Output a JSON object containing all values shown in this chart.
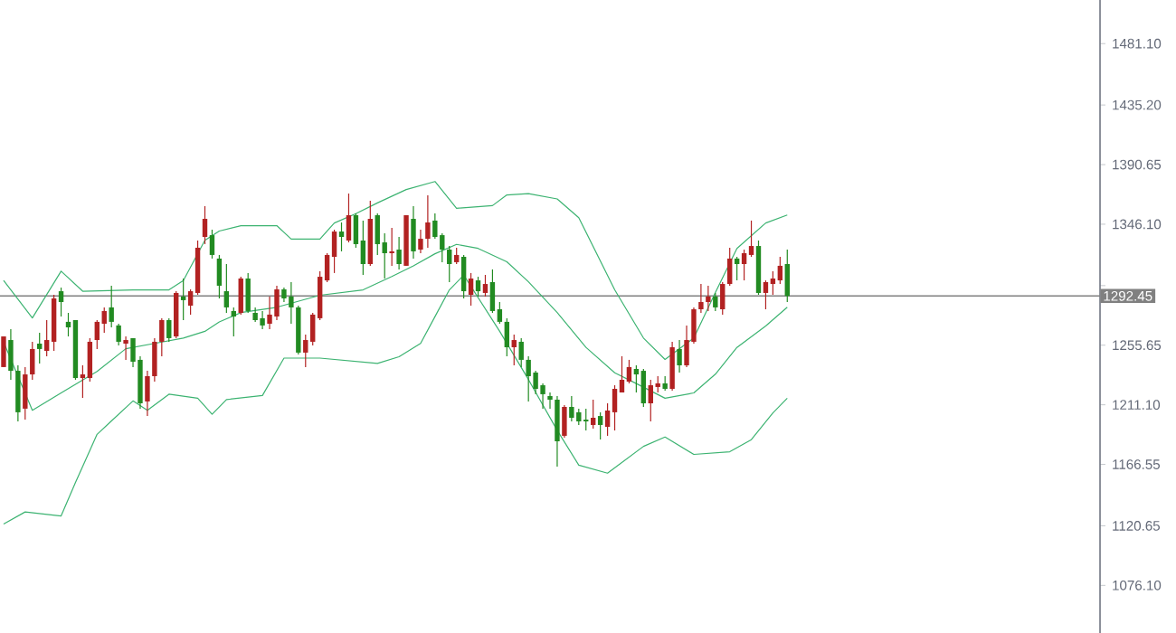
{
  "chart_data": {
    "type": "candlestick",
    "categories": [
      null,
      null,
      null,
      null,
      null,
      null,
      null,
      null,
      null,
      null,
      null,
      null,
      null,
      null,
      null,
      null,
      null,
      null,
      null,
      null,
      null,
      null,
      null,
      null,
      null,
      null,
      null,
      null,
      null,
      null,
      null,
      null,
      null,
      null,
      null,
      null,
      null,
      null,
      null,
      null,
      null,
      null,
      null,
      null,
      null,
      null,
      null,
      null,
      null,
      null,
      null,
      null,
      null,
      null,
      null,
      null,
      null,
      null,
      null,
      null,
      null,
      null,
      null,
      null,
      null,
      null,
      null,
      null,
      null,
      null,
      null,
      null,
      null,
      null,
      null,
      null,
      null,
      null,
      null,
      null,
      null,
      null,
      null,
      null,
      null,
      null,
      null,
      null,
      null,
      null,
      null,
      null,
      null,
      null,
      null,
      null,
      null,
      null,
      null,
      null,
      null,
      null,
      null,
      null,
      null,
      null,
      null,
      null,
      null,
      null,
      null,
      null,
      null,
      null,
      null,
      null,
      null,
      null,
      null,
      null,
      null,
      null,
      null,
      null,
      null,
      null,
      null,
      null,
      null,
      null,
      null,
      null,
      null,
      null,
      null,
      null,
      null,
      null,
      null,
      null,
      null,
      null,
      null,
      null,
      null,
      null,
      null,
      null,
      null,
      null,
      null,
      null,
      null
    ],
    "ohlc": [
      [
        1239.3,
        1262.2,
        1239.3,
        1262.2
      ],
      [
        1259.5,
        1267.6,
        1229.8,
        1236.5
      ],
      [
        1236.5,
        1240.6,
        1198.7,
        1205.5
      ],
      [
        1208.2,
        1239.3,
        1200.0,
        1233.8
      ],
      [
        1233.8,
        1258.2,
        1229.8,
        1252.8
      ],
      [
        1256.8,
        1264.9,
        1242.0,
        1252.8
      ],
      [
        1251.4,
        1274.4,
        1247.4,
        1259.5
      ],
      [
        1258.2,
        1293.3,
        1251.4,
        1290.6
      ],
      [
        1296.0,
        1298.7,
        1277.1,
        1287.9
      ],
      [
        1273.1,
        1279.8,
        1262.2,
        1269.0
      ],
      [
        1274.4,
        1274.4,
        1229.8,
        1231.1
      ],
      [
        1231.1,
        1240.6,
        1216.3,
        1233.8
      ],
      [
        1231.1,
        1260.9,
        1228.4,
        1258.2
      ],
      [
        1259.5,
        1274.4,
        1252.8,
        1273.1
      ],
      [
        1271.7,
        1283.9,
        1264.9,
        1281.2
      ],
      [
        1283.9,
        1300.1,
        1269.0,
        1273.1
      ],
      [
        1270.4,
        1271.7,
        1255.5,
        1258.2
      ],
      [
        1256.8,
        1262.2,
        1244.7,
        1259.5
      ],
      [
        1260.9,
        1260.9,
        1239.3,
        1243.3
      ],
      [
        1244.7,
        1247.4,
        1208.2,
        1212.2
      ],
      [
        1213.6,
        1236.5,
        1202.7,
        1232.5
      ],
      [
        1232.5,
        1260.9,
        1228.4,
        1258.2
      ],
      [
        1258.2,
        1275.8,
        1247.4,
        1274.4
      ],
      [
        1274.4,
        1275.8,
        1258.2,
        1260.9
      ],
      [
        1262.2,
        1296.0,
        1260.9,
        1294.7
      ],
      [
        1292.0,
        1305.5,
        1274.4,
        1289.3
      ],
      [
        1285.2,
        1297.4,
        1278.5,
        1296.0
      ],
      [
        1294.7,
        1333.9,
        1293.3,
        1328.5
      ],
      [
        1336.6,
        1359.6,
        1331.2,
        1350.1
      ],
      [
        1337.9,
        1342.0,
        1320.4,
        1323.1
      ],
      [
        1320.4,
        1323.1,
        1290.6,
        1300.1
      ],
      [
        1296.0,
        1316.3,
        1279.8,
        1283.9
      ],
      [
        1281.2,
        1283.9,
        1262.2,
        1277.1
      ],
      [
        1279.8,
        1306.8,
        1278.5,
        1305.5
      ],
      [
        1305.5,
        1309.6,
        1279.8,
        1281.2
      ],
      [
        1279.8,
        1283.9,
        1273.1,
        1274.4
      ],
      [
        1275.8,
        1281.2,
        1267.6,
        1270.4
      ],
      [
        1271.7,
        1292.0,
        1267.6,
        1278.5
      ],
      [
        1277.1,
        1300.1,
        1274.4,
        1297.4
      ],
      [
        1297.4,
        1298.7,
        1287.9,
        1290.6
      ],
      [
        1292.0,
        1302.8,
        1271.7,
        1283.9
      ],
      [
        1283.9,
        1285.2,
        1248.7,
        1250.1
      ],
      [
        1250.1,
        1263.6,
        1239.3,
        1259.5
      ],
      [
        1258.2,
        1279.8,
        1255.5,
        1278.5
      ],
      [
        1275.8,
        1310.9,
        1274.4,
        1306.8
      ],
      [
        1304.1,
        1324.4,
        1302.8,
        1323.1
      ],
      [
        1321.7,
        1342.0,
        1309.6,
        1340.6
      ],
      [
        1340.6,
        1347.4,
        1325.8,
        1336.6
      ],
      [
        1333.9,
        1369.0,
        1332.5,
        1352.8
      ],
      [
        1352.8,
        1354.2,
        1328.5,
        1331.2
      ],
      [
        1333.9,
        1348.8,
        1308.2,
        1316.3
      ],
      [
        1316.3,
        1363.6,
        1315.0,
        1350.1
      ],
      [
        1352.8,
        1354.2,
        1323.1,
        1331.2
      ],
      [
        1332.5,
        1339.3,
        1305.5,
        1324.4
      ],
      [
        1324.4,
        1343.3,
        1315.0,
        1325.8
      ],
      [
        1327.1,
        1336.6,
        1312.3,
        1316.3
      ],
      [
        1315.0,
        1352.8,
        1315.0,
        1352.8
      ],
      [
        1350.1,
        1359.6,
        1320.4,
        1325.8
      ],
      [
        1327.1,
        1342.0,
        1324.4,
        1335.2
      ],
      [
        1335.2,
        1367.7,
        1328.5,
        1347.4
      ],
      [
        1348.8,
        1354.2,
        1335.2,
        1336.6
      ],
      [
        1337.9,
        1339.3,
        1317.7,
        1327.1
      ],
      [
        1327.1,
        1329.8,
        1302.8,
        1316.3
      ],
      [
        1317.7,
        1328.5,
        1316.3,
        1323.1
      ],
      [
        1321.7,
        1323.1,
        1290.6,
        1296.0
      ],
      [
        1293.3,
        1309.6,
        1285.2,
        1305.5
      ],
      [
        1304.1,
        1306.8,
        1292.0,
        1296.0
      ],
      [
        1294.7,
        1308.2,
        1292.0,
        1301.4
      ],
      [
        1302.8,
        1312.3,
        1279.8,
        1281.2
      ],
      [
        1282.5,
        1287.9,
        1271.7,
        1273.1
      ],
      [
        1273.1,
        1275.8,
        1247.4,
        1254.1
      ],
      [
        1254.1,
        1263.6,
        1240.6,
        1259.5
      ],
      [
        1258.2,
        1260.9,
        1239.3,
        1244.7
      ],
      [
        1244.7,
        1247.4,
        1213.6,
        1232.5
      ],
      [
        1235.2,
        1236.5,
        1219.0,
        1223.0
      ],
      [
        1225.7,
        1227.1,
        1208.2,
        1219.0
      ],
      [
        1217.6,
        1220.3,
        1208.2,
        1214.9
      ],
      [
        1214.9,
        1217.6,
        1164.9,
        1183.8
      ],
      [
        1187.9,
        1210.9,
        1186.5,
        1209.5
      ],
      [
        1209.5,
        1217.6,
        1198.7,
        1201.4
      ],
      [
        1205.5,
        1208.2,
        1196.0,
        1198.7
      ],
      [
        1200.0,
        1208.2,
        1191.9,
        1198.7
      ],
      [
        1196.0,
        1214.9,
        1193.3,
        1201.4
      ],
      [
        1202.7,
        1205.5,
        1185.2,
        1196.0
      ],
      [
        1194.6,
        1212.2,
        1187.9,
        1206.8
      ],
      [
        1205.5,
        1225.7,
        1191.9,
        1223.0
      ],
      [
        1220.3,
        1247.4,
        1220.3,
        1229.8
      ],
      [
        1228.4,
        1244.7,
        1227.1,
        1239.3
      ],
      [
        1237.9,
        1240.6,
        1220.3,
        1233.8
      ],
      [
        1236.5,
        1237.9,
        1209.5,
        1212.2
      ],
      [
        1212.2,
        1229.8,
        1198.7,
        1225.7
      ],
      [
        1224.4,
        1232.5,
        1220.3,
        1227.1
      ],
      [
        1227.1,
        1232.5,
        1221.7,
        1223.0
      ],
      [
        1223.0,
        1258.2,
        1221.7,
        1254.1
      ],
      [
        1252.8,
        1259.5,
        1235.2,
        1240.6
      ],
      [
        1240.6,
        1270.4,
        1239.3,
        1259.5
      ],
      [
        1258.2,
        1283.9,
        1256.8,
        1282.5
      ],
      [
        1282.5,
        1301.4,
        1279.8,
        1287.9
      ],
      [
        1287.9,
        1300.1,
        1281.2,
        1292.0
      ],
      [
        1292.0,
        1294.7,
        1281.2,
        1283.9
      ],
      [
        1282.5,
        1302.8,
        1278.5,
        1301.4
      ],
      [
        1301.4,
        1328.5,
        1300.1,
        1320.4
      ],
      [
        1320.4,
        1321.7,
        1304.1,
        1316.3
      ],
      [
        1316.3,
        1327.1,
        1304.1,
        1324.4
      ],
      [
        1323.1,
        1348.8,
        1321.7,
        1329.8
      ],
      [
        1329.8,
        1333.9,
        1293.3,
        1294.7
      ],
      [
        1294.7,
        1304.1,
        1282.5,
        1302.8
      ],
      [
        1301.4,
        1310.9,
        1293.3,
        1305.5
      ],
      [
        1304.1,
        1321.7,
        1301.4,
        1315.0
      ],
      [
        1316.3,
        1327.1,
        1287.9,
        1292.45
      ],
      null,
      null,
      null,
      null,
      null,
      null,
      null,
      null,
      null,
      null,
      null,
      null,
      null,
      null,
      null,
      null,
      null,
      null,
      null,
      null,
      null,
      null,
      null,
      null,
      null,
      null,
      null,
      null,
      null,
      null,
      null,
      null,
      null,
      null,
      null,
      null,
      null,
      null,
      null,
      null,
      null,
      null,
      null
    ],
    "colors": [
      "#b22222",
      "#228b22",
      "#228b22",
      "#b22222",
      "#b22222",
      "#228b22",
      "#b22222",
      "#b22222",
      "#228b22",
      "#228b22",
      "#228b22",
      "#b22222",
      "#b22222",
      "#b22222",
      "#b22222",
      "#228b22",
      "#228b22",
      "#b22222",
      "#228b22",
      "#228b22",
      "#b22222",
      "#b22222",
      "#b22222",
      "#228b22",
      "#b22222",
      "#228b22",
      "#b22222",
      "#b22222",
      "#b22222",
      "#228b22",
      "#228b22",
      "#228b22",
      "#228b22",
      "#b22222",
      "#228b22",
      "#228b22",
      "#228b22",
      "#b22222",
      "#b22222",
      "#228b22",
      "#228b22",
      "#228b22",
      "#b22222",
      "#b22222",
      "#b22222",
      "#b22222",
      "#b22222",
      "#228b22",
      "#b22222",
      "#228b22",
      "#228b22",
      "#b22222",
      "#228b22",
      "#228b22",
      "#b22222",
      "#228b22",
      "#b22222",
      "#228b22",
      "#b22222",
      "#b22222",
      "#228b22",
      "#228b22",
      "#228b22",
      "#b22222",
      "#228b22",
      "#b22222",
      "#228b22",
      "#b22222",
      "#228b22",
      "#228b22",
      "#228b22",
      "#b22222",
      "#228b22",
      "#228b22",
      "#228b22",
      "#228b22",
      "#228b22",
      "#228b22",
      "#b22222",
      "#228b22",
      "#228b22",
      "#228b22",
      "#b22222",
      "#228b22",
      "#b22222",
      "#b22222",
      "#b22222",
      "#b22222",
      "#228b22",
      "#228b22",
      "#b22222",
      "#b22222",
      "#228b22",
      "#b22222",
      "#228b22",
      "#b22222",
      "#b22222",
      "#b22222",
      "#b22222",
      "#228b22",
      "#b22222",
      "#b22222",
      "#228b22",
      "#b22222",
      "#b22222",
      "#228b22",
      "#b22222",
      "#b22222",
      "#b22222",
      "#228b22",
      null,
      null,
      null,
      null,
      null,
      null,
      null,
      null,
      null,
      null,
      null,
      null,
      null,
      null,
      null,
      null,
      null,
      null,
      null,
      null,
      null,
      null,
      null,
      null,
      null,
      null,
      null,
      null,
      null,
      null,
      null,
      null,
      null,
      null,
      null,
      null,
      null,
      null,
      null,
      null,
      null,
      null,
      null
    ],
    "series": [
      {
        "type": "line",
        "color": "#3cb371",
        "values": [
          1304,
          null,
          null,
          null,
          1276,
          null,
          null,
          null,
          1311,
          null,
          null,
          1296,
          null,
          null,
          null,
          null,
          null,
          null,
          1297,
          null,
          null,
          null,
          null,
          1297,
          null,
          1304,
          null,
          null,
          1334,
          null,
          1341,
          null,
          null,
          1345,
          null,
          null,
          null,
          null,
          1345,
          null,
          1335,
          null,
          null,
          null,
          1335,
          null,
          1347,
          null,
          null,
          1354,
          null,
          null,
          1362,
          null,
          null,
          null,
          1372,
          null,
          null,
          null,
          1378,
          null,
          null,
          1358,
          null,
          null,
          null,
          null,
          1360,
          null,
          1368,
          null,
          null,
          1369,
          null,
          null,
          null,
          1365,
          null,
          null,
          1351,
          null,
          null,
          null,
          null,
          1297,
          null,
          null,
          null,
          1261,
          null,
          null,
          1245,
          null,
          null,
          null,
          1261,
          null,
          null,
          1295,
          null,
          null,
          1328,
          null,
          null,
          null,
          1347,
          null,
          null,
          1353,
          null,
          null,
          null,
          null,
          null,
          null,
          null,
          null,
          null,
          null,
          null,
          null,
          null,
          null,
          null,
          null,
          null,
          null,
          null,
          null,
          null,
          null,
          null,
          null,
          null,
          null,
          null,
          null,
          null,
          null,
          null,
          null,
          null,
          null,
          null,
          null,
          null,
          null,
          null,
          null,
          null,
          null,
          null
        ]
      },
      {
        "type": "line",
        "color": "#3cb371",
        "values": [
          1258,
          null,
          null,
          null,
          1207,
          null,
          null,
          null,
          1220,
          null,
          null,
          null,
          null,
          1236,
          null,
          null,
          null,
          1253,
          null,
          null,
          null,
          1257,
          null,
          null,
          null,
          1261,
          null,
          null,
          1266,
          null,
          1273,
          null,
          null,
          1280,
          null,
          null,
          null,
          null,
          1284,
          null,
          null,
          null,
          null,
          null,
          1293,
          null,
          null,
          null,
          null,
          null,
          1297,
          null,
          null,
          null,
          1307,
          null,
          null,
          1315,
          null,
          null,
          1324,
          null,
          null,
          1331,
          null,
          null,
          1328,
          null,
          null,
          null,
          1318,
          null,
          null,
          1303,
          null,
          null,
          null,
          1280,
          null,
          null,
          null,
          1254,
          null,
          null,
          null,
          1235,
          null,
          null,
          1227,
          null,
          null,
          null,
          1216,
          null,
          null,
          null,
          1220,
          null,
          null,
          1234,
          null,
          null,
          1254,
          null,
          null,
          null,
          1270,
          null,
          null,
          1284,
          null,
          null,
          null,
          null,
          null,
          null,
          null,
          null,
          null,
          null,
          null,
          null,
          null,
          null,
          null,
          null,
          null,
          null,
          null,
          null,
          null,
          null,
          null,
          null,
          null,
          null,
          null,
          null,
          null,
          null,
          null,
          null,
          null,
          null,
          null,
          null,
          null,
          null,
          null,
          null,
          null,
          null,
          null
        ]
      },
      {
        "type": "line",
        "color": "#3cb371",
        "values": [
          1122,
          null,
          null,
          1131,
          null,
          null,
          null,
          null,
          1128,
          null,
          1153,
          null,
          null,
          1189,
          null,
          1199,
          null,
          null,
          1214,
          null,
          1207,
          null,
          null,
          1219,
          null,
          null,
          null,
          1216,
          null,
          1204,
          null,
          1215,
          null,
          null,
          null,
          null,
          1218,
          null,
          null,
          1246,
          null,
          null,
          null,
          null,
          1246,
          null,
          null,
          null,
          null,
          null,
          null,
          null,
          1242,
          null,
          null,
          1247,
          null,
          null,
          1257,
          null,
          1277,
          null,
          1297,
          null,
          1308,
          null,
          null,
          null,
          null,
          1266,
          null,
          null,
          null,
          1230,
          null,
          null,
          null,
          1192,
          null,
          null,
          1166,
          null,
          null,
          null,
          1160,
          null,
          null,
          null,
          null,
          1180,
          null,
          null,
          1187,
          null,
          null,
          null,
          1174,
          null,
          null,
          null,
          null,
          1176,
          null,
          null,
          1185,
          null,
          null,
          1205,
          null,
          1216,
          null,
          null,
          null,
          null,
          null,
          null,
          null,
          null,
          null,
          null,
          null,
          null,
          null,
          null,
          null,
          null,
          null,
          null,
          null,
          null,
          null,
          null,
          null,
          null,
          null,
          null,
          null,
          null,
          null,
          null,
          null,
          null,
          null,
          null,
          null,
          null,
          null,
          null,
          null,
          null,
          null,
          null,
          null
        ]
      }
    ],
    "ylim": [
      1040.5,
      1513.7
    ],
    "yticks": [
      {
        "value": 1076.1,
        "label": "1076.10"
      },
      {
        "value": 1120.65,
        "label": "1120.65"
      },
      {
        "value": 1166.55,
        "label": "1166.55"
      },
      {
        "value": 1211.1,
        "label": "1211.10"
      },
      {
        "value": 1255.65,
        "label": "1255.65"
      },
      {
        "value": 1300.2,
        "label": null
      },
      {
        "value": 1346.1,
        "label": "1346.10"
      },
      {
        "value": 1390.65,
        "label": "1390.65"
      },
      {
        "value": 1435.2,
        "label": "1435.20"
      },
      {
        "value": 1481.1,
        "label": "1481.10"
      }
    ],
    "ref_lines": [
      {
        "axis": "y",
        "value": 1292.45,
        "label": "1292.45",
        "color": "#808080"
      }
    ],
    "tick_labels": "y"
  }
}
